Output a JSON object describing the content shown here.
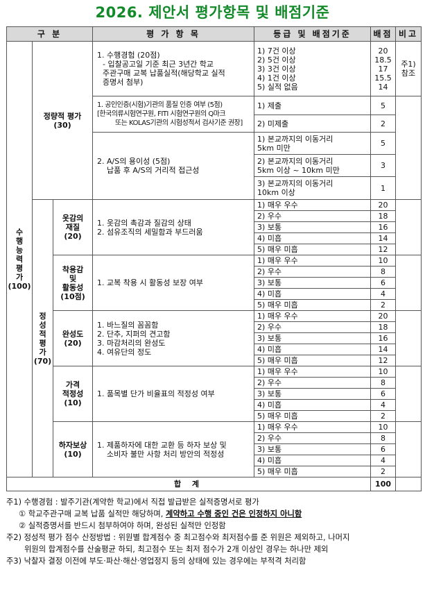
{
  "title": "2026. 제안서 평가항목 및 배점기준",
  "headers": {
    "category": "구 분",
    "item": "평 가 항 목",
    "criteria": "등급 및 배점기준",
    "score": "배점",
    "note": "비고"
  },
  "big_category": "수\n행\n능\n력\n평\n가\n(100)",
  "quant": {
    "label": "정량적 평가\n(30)",
    "items": [
      {
        "lines": [
          "1. 수행경험 (20점)",
          "- 입찰공고일 기준 최근 3년간 학교",
          "주관구매 교복 납품실적(해당학교 실적",
          "증명서 첨부)"
        ],
        "grades": [
          {
            "text": "1) 7건 이상\n2) 5건 이상\n3) 3건 이상\n4) 1건 이상\n5) 실적 없음",
            "score": "20\n18.5\n17\n15.5\n14"
          }
        ],
        "note": "주1)\n참조"
      },
      {
        "lines": [
          "1. 공인인증(시험)기관의 품질 인증 여부 (5점)",
          "[한국의류시험연구원, FITI 시험연구원의 Q마크",
          "또는 KOLAS기관의 시험성적서 검사기준 권장]"
        ],
        "grades": [
          {
            "text": "1) 제출",
            "score": "5"
          },
          {
            "text": "2) 미제출",
            "score": "2"
          }
        ]
      },
      {
        "lines": [
          "2. A/S의 용이성 (5점)",
          "납품 후 A/S의 거리적 접근성"
        ],
        "grades": [
          {
            "text": "1) 본교까지의 이동거리\n5km 미만",
            "score": "5"
          },
          {
            "text": "2) 본교까지의 이동거리\n5km 이상 ~ 10km 미만",
            "score": "3"
          },
          {
            "text": "3) 본교까지의 이동거리\n10km 이상",
            "score": "1"
          }
        ]
      }
    ]
  },
  "qual": {
    "label": "정\n성\n적\n평\n가\n(70)",
    "items": [
      {
        "label": "옷감의\n재질\n(20)",
        "lines": [
          "1. 옷감의 촉감과 질감의 상태",
          "2. 섬유조직의 세밀함과 부드러움"
        ],
        "grades": [
          "1) 매우 우수",
          "2) 우수",
          "3) 보통",
          "4) 미흡",
          "5) 매우 미흡"
        ],
        "scores": [
          "20",
          "18",
          "16",
          "14",
          "12"
        ]
      },
      {
        "label": "착용감\n및\n활동성\n(10점)",
        "lines": [
          "1. 교복 착용 시 활동성 보장 여부"
        ],
        "grades": [
          "1) 매우 우수",
          "2) 우수",
          "3) 보통",
          "4) 미흡",
          "5) 매우 미흡"
        ],
        "scores": [
          "10",
          "8",
          "6",
          "4",
          "2"
        ]
      },
      {
        "label": "완성도\n(20)",
        "lines": [
          "1. 바느질의 꼼꼼함",
          "2. 단추, 지퍼의 견고함",
          "3. 마감처리의 완성도",
          "4. 여유단의 정도"
        ],
        "grades": [
          "1) 매우 우수",
          "2) 우수",
          "3) 보통",
          "4) 미흡",
          "5) 매우 미흡"
        ],
        "scores": [
          "20",
          "18",
          "16",
          "14",
          "12"
        ]
      },
      {
        "label": "가격\n적정성\n(10)",
        "lines": [
          "1. 품목별 단가 비율표의 적정성 여부"
        ],
        "grades": [
          "1) 매우 우수",
          "2) 우수",
          "3) 보통",
          "4) 미흡",
          "5) 매우 미흡"
        ],
        "scores": [
          "10",
          "8",
          "6",
          "4",
          "2"
        ]
      },
      {
        "label": "하자보상\n(10)",
        "lines": [
          "1. 제품하자에 대한 교환 등 하자 보상 및",
          "소비자 불만 사항 처리 방안의 적정성"
        ],
        "grades": [
          "1) 매우 우수",
          "2) 우수",
          "3) 보통",
          "4) 미흡",
          "5) 매우 미흡"
        ],
        "scores": [
          "10",
          "8",
          "6",
          "4",
          "2"
        ]
      }
    ]
  },
  "total": {
    "label": "합 계",
    "value": "100"
  },
  "footnotes": {
    "n1": "주1) 수행경험 : 발주기관(계약한 학교)에서 직접 발급받은 실적증명서로 평가",
    "n1a_pre": "① 학교주관구매 교복 납품 실적만 해당하며, ",
    "n1a_emph": "계약하고 수행 중인 건은 인정하지 아니함",
    "n1b": "② 실적증명서를 반드시 첨부하여야 하며, 완성된 실적만 인정함",
    "n2a": "주2) 정성적 평가 점수 산정방법 : 위원별 합계점수 중 최고점수와 최저점수를 준 위원은 제외하고, 나머지",
    "n2b": "위원의 합계점수를 산술평균 하되, 최고점수 또는 최저 점수가 2개 이상인 경우는 하나만 제외",
    "n3": "주3) 낙찰자 결정 이전에 부도·파산·해산·영업정지 등의 상태에 있는 경우에는 부적격 처리함"
  },
  "colors": {
    "title": "#138a2a",
    "header_bg": "#d9d9d9",
    "border": "#555555"
  }
}
